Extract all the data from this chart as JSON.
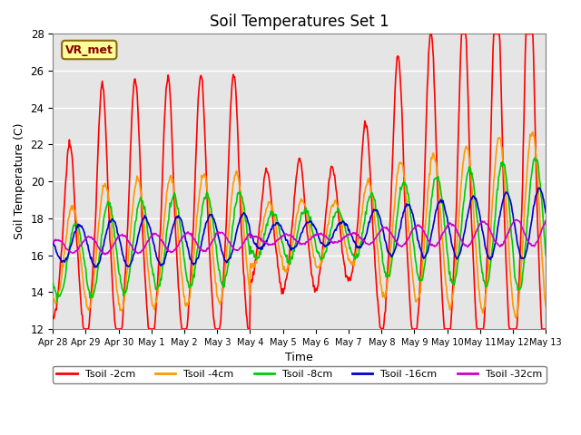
{
  "title": "Soil Temperatures Set 1",
  "xlabel": "Time",
  "ylabel": "Soil Temperature (C)",
  "ylim": [
    12,
    28
  ],
  "annotation": "VR_met",
  "background_color": "#e5e5e5",
  "series": {
    "Tsoil -2cm": {
      "color": "#ff0000",
      "lw": 1.2
    },
    "Tsoil -4cm": {
      "color": "#ff9900",
      "lw": 1.2
    },
    "Tsoil -8cm": {
      "color": "#00cc00",
      "lw": 1.2
    },
    "Tsoil -16cm": {
      "color": "#0000cc",
      "lw": 1.2
    },
    "Tsoil -32cm": {
      "color": "#cc00cc",
      "lw": 1.2
    }
  },
  "xtick_labels": [
    "Apr 28",
    "Apr 29",
    "Apr 30",
    "May 1",
    "May 2",
    "May 3",
    "May 4",
    "May 5",
    "May 6",
    "May 7",
    "May 8",
    "May 9",
    "May 10",
    "May 11",
    "May 12",
    "May 13"
  ],
  "num_days": 15,
  "points_per_day": 48
}
